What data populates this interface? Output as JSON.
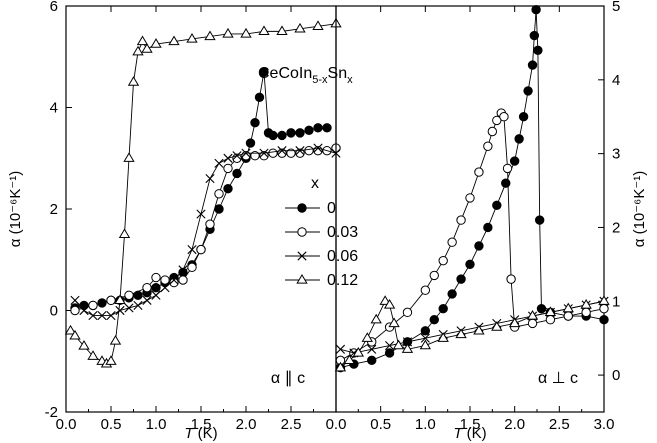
{
  "chart_data": [
    {
      "type": "scatter",
      "panel": "left",
      "xlabel_prefix": "T",
      "xlabel_unit": " (K)",
      "ylabel": "α (10⁻⁶K⁻¹)",
      "xlim": [
        0,
        3.0
      ],
      "ylim": [
        -2,
        6
      ],
      "x_ticks": [
        "0.0",
        "0.5",
        "1.0",
        "1.5",
        "2.0",
        "2.5"
      ],
      "y_ticks": [
        "-2",
        "0",
        "2",
        "4",
        "6"
      ],
      "annotation": "α ∥ c",
      "compound_label": "CeCoIn5-xSnx",
      "series": [
        {
          "name": "0",
          "marker": "filled-circle",
          "x": [
            0.1,
            0.2,
            0.3,
            0.4,
            0.5,
            0.6,
            0.7,
            0.8,
            0.9,
            1.0,
            1.1,
            1.2,
            1.3,
            1.4,
            1.5,
            1.6,
            1.7,
            1.8,
            1.9,
            2.0,
            2.05,
            2.1,
            2.15,
            2.2,
            2.25,
            2.3,
            2.4,
            2.5,
            2.6,
            2.7,
            2.8,
            2.9
          ],
          "y": [
            0.05,
            0.1,
            0.1,
            0.15,
            0.2,
            0.2,
            0.25,
            0.3,
            0.35,
            0.45,
            0.55,
            0.65,
            0.75,
            0.9,
            1.2,
            1.6,
            2.0,
            2.4,
            2.7,
            3.0,
            3.3,
            3.7,
            4.2,
            4.7,
            3.5,
            3.45,
            3.45,
            3.5,
            3.5,
            3.55,
            3.6,
            3.6
          ]
        },
        {
          "name": "0.03",
          "marker": "open-circle",
          "x": [
            0.1,
            0.3,
            0.5,
            0.7,
            0.9,
            1.0,
            1.1,
            1.2,
            1.3,
            1.4,
            1.5,
            1.6,
            1.7,
            1.8,
            1.9,
            2.0,
            2.1,
            2.2,
            2.3,
            2.4,
            2.5,
            2.6,
            2.7,
            2.8,
            2.9,
            3.0
          ],
          "y": [
            0.0,
            0.1,
            0.2,
            0.3,
            0.45,
            0.65,
            0.6,
            0.55,
            0.6,
            0.85,
            1.2,
            1.7,
            2.3,
            2.8,
            3.0,
            3.05,
            3.05,
            3.05,
            3.1,
            3.1,
            3.1,
            3.1,
            3.15,
            3.15,
            3.15,
            3.2
          ]
        },
        {
          "name": "0.06",
          "marker": "cross",
          "x": [
            0.1,
            0.2,
            0.3,
            0.4,
            0.5,
            0.6,
            0.7,
            0.8,
            0.9,
            1.0,
            1.1,
            1.2,
            1.3,
            1.4,
            1.5,
            1.6,
            1.7,
            1.8,
            1.9,
            2.0,
            2.2,
            2.4,
            2.6,
            2.8,
            3.0
          ],
          "y": [
            0.2,
            0.0,
            -0.1,
            -0.1,
            -0.1,
            0.0,
            0.05,
            0.1,
            0.2,
            0.3,
            0.45,
            0.6,
            0.8,
            1.2,
            1.9,
            2.6,
            2.9,
            3.0,
            3.05,
            3.1,
            3.1,
            3.15,
            3.15,
            3.2,
            3.1
          ]
        },
        {
          "name": "0.12",
          "marker": "open-triangle",
          "x": [
            0.05,
            0.1,
            0.2,
            0.3,
            0.4,
            0.45,
            0.5,
            0.55,
            0.6,
            0.65,
            0.7,
            0.75,
            0.8,
            0.85,
            0.9,
            1.0,
            1.2,
            1.4,
            1.6,
            1.8,
            2.0,
            2.2,
            2.4,
            2.6,
            2.8,
            3.0
          ],
          "y": [
            -0.4,
            -0.5,
            -0.7,
            -0.9,
            -1.0,
            -1.05,
            -1.0,
            -0.6,
            0.2,
            1.5,
            3.0,
            4.5,
            5.1,
            5.3,
            5.15,
            5.25,
            5.3,
            5.35,
            5.4,
            5.45,
            5.45,
            5.5,
            5.5,
            5.55,
            5.6,
            5.65
          ]
        }
      ]
    },
    {
      "type": "scatter",
      "panel": "right",
      "xlabel_prefix": "T",
      "xlabel_unit": " (K)",
      "ylabel": "α (10⁻⁶K⁻¹)",
      "xlim": [
        0,
        3.0
      ],
      "ylim": [
        -0.5,
        5
      ],
      "x_ticks": [
        "0.0",
        "0.5",
        "1.0",
        "1.5",
        "2.0",
        "2.5",
        "3.0"
      ],
      "y_ticks": [
        "0",
        "1",
        "2",
        "3",
        "4",
        "5"
      ],
      "annotation": "α ⊥ c",
      "series": [
        {
          "name": "0",
          "marker": "filled-circle",
          "x": [
            0.05,
            0.2,
            0.4,
            0.6,
            0.8,
            1.0,
            1.1,
            1.2,
            1.3,
            1.4,
            1.5,
            1.6,
            1.7,
            1.8,
            1.9,
            2.0,
            2.05,
            2.1,
            2.15,
            2.2,
            2.22,
            2.24,
            2.26,
            2.28,
            2.3,
            2.4,
            2.6,
            2.8,
            3.0
          ],
          "y": [
            0.1,
            0.15,
            0.2,
            0.3,
            0.45,
            0.6,
            0.75,
            0.9,
            1.1,
            1.3,
            1.5,
            1.75,
            2.0,
            2.3,
            2.6,
            2.9,
            3.2,
            3.5,
            3.85,
            4.2,
            4.6,
            4.95,
            4.4,
            2.1,
            0.9,
            0.85,
            0.8,
            0.8,
            0.75
          ]
        },
        {
          "name": "0.03",
          "marker": "open-circle",
          "x": [
            0.05,
            0.2,
            0.4,
            0.6,
            0.8,
            1.0,
            1.1,
            1.2,
            1.3,
            1.4,
            1.5,
            1.6,
            1.7,
            1.75,
            1.8,
            1.85,
            1.88,
            1.92,
            1.96,
            2.0,
            2.2,
            2.4,
            2.6,
            2.8,
            3.0
          ],
          "y": [
            0.2,
            0.3,
            0.45,
            0.65,
            0.85,
            1.15,
            1.35,
            1.55,
            1.8,
            2.1,
            2.4,
            2.75,
            3.1,
            3.3,
            3.45,
            3.55,
            3.5,
            2.8,
            1.3,
            0.65,
            0.7,
            0.75,
            0.8,
            0.85,
            0.9
          ]
        },
        {
          "name": "0.06",
          "marker": "cross",
          "x": [
            0.05,
            0.2,
            0.4,
            0.6,
            0.8,
            1.0,
            1.2,
            1.4,
            1.6,
            1.8,
            2.0,
            2.2,
            2.4,
            2.6,
            2.8,
            3.0
          ],
          "y": [
            0.35,
            0.3,
            0.35,
            0.4,
            0.45,
            0.5,
            0.55,
            0.6,
            0.65,
            0.7,
            0.75,
            0.8,
            0.85,
            0.9,
            0.95,
            1.0
          ]
        },
        {
          "name": "0.12",
          "marker": "open-triangle",
          "x": [
            0.05,
            0.15,
            0.25,
            0.35,
            0.45,
            0.55,
            0.6,
            0.65,
            0.7,
            0.8,
            1.0,
            1.2,
            1.4,
            1.6,
            1.8,
            2.0,
            2.2,
            2.4,
            2.6,
            2.8,
            3.0
          ],
          "y": [
            0.1,
            0.2,
            0.3,
            0.5,
            0.75,
            1.0,
            0.95,
            0.7,
            0.4,
            0.35,
            0.4,
            0.5,
            0.55,
            0.6,
            0.65,
            0.7,
            0.8,
            0.85,
            0.9,
            0.95,
            1.0
          ]
        }
      ]
    }
  ]
}
